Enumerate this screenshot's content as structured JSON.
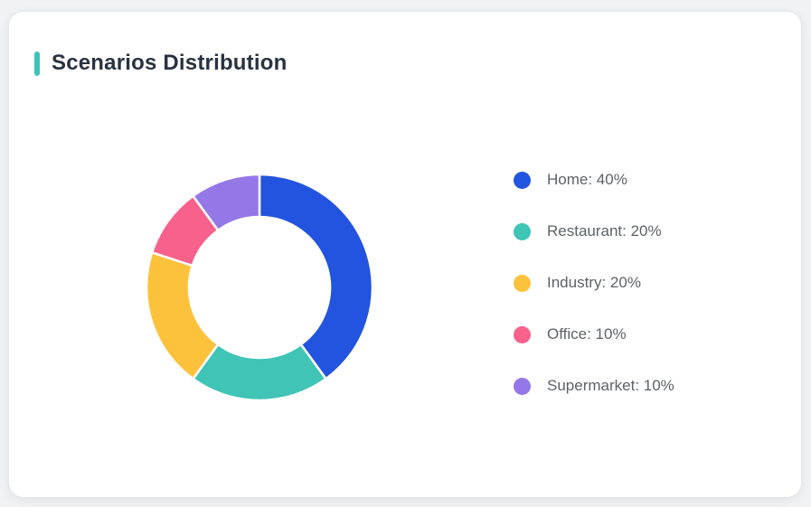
{
  "card": {
    "title": "Scenarios Distribution"
  },
  "theme": {
    "page_background": "#F1F2F4",
    "card_background": "#FFFFFF",
    "accent_bar_color": "#3DC5BB",
    "title_color": "#293241",
    "legend_text_color": "#5E6266",
    "segment_gap_color": "#FFFFFF"
  },
  "chart_data": {
    "type": "pie",
    "subtype": "donut",
    "title": "Scenarios Distribution",
    "categories": [
      "Home",
      "Restaurant",
      "Industry",
      "Office",
      "Supermarket"
    ],
    "values": [
      40,
      20,
      20,
      10,
      10
    ],
    "unit": "%",
    "colors": [
      "#2254E0",
      "#3FC4B5",
      "#FCC23C",
      "#F8618C",
      "#9478E8"
    ],
    "legend_labels": [
      "Home: 40%",
      "Restaurant: 20%",
      "Industry: 20%",
      "Office: 10%",
      "Supermarket: 10%"
    ],
    "legend_position": "right",
    "start_angle_deg": 0,
    "direction": "clockwise",
    "outer_radius": 125,
    "inner_radius": 78
  }
}
